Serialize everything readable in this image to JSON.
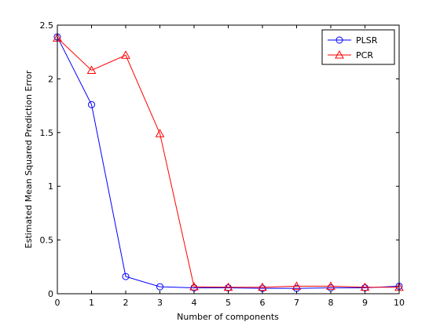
{
  "chart_data": {
    "type": "line",
    "title": "",
    "xlabel": "Number of components",
    "ylabel": "Estimated Mean Squared Prediction Error",
    "xlim": [
      0,
      10
    ],
    "ylim": [
      0,
      2.5
    ],
    "x": [
      0,
      1,
      2,
      3,
      4,
      5,
      6,
      7,
      8,
      9,
      10
    ],
    "x_ticks": [
      "0",
      "1",
      "2",
      "3",
      "4",
      "5",
      "6",
      "7",
      "8",
      "9",
      "10"
    ],
    "y_ticks": [
      {
        "value": 0,
        "label": "0"
      },
      {
        "value": 0.5,
        "label": "0.5"
      },
      {
        "value": 1,
        "label": "1"
      },
      {
        "value": 1.5,
        "label": "1.5"
      },
      {
        "value": 2,
        "label": "2"
      },
      {
        "value": 2.5,
        "label": "2.5"
      }
    ],
    "grid": false,
    "legend_position": "top-right",
    "series": [
      {
        "name": "PLSR",
        "color": "#0000ff",
        "marker": "circle",
        "values": [
          2.39,
          1.76,
          0.16,
          0.065,
          0.055,
          0.055,
          0.05,
          0.05,
          0.055,
          0.055,
          0.07
        ]
      },
      {
        "name": "PCR",
        "color": "#ff0000",
        "marker": "triangle",
        "values": [
          2.38,
          2.08,
          2.22,
          1.49,
          0.065,
          0.06,
          0.06,
          0.07,
          0.07,
          0.06,
          0.06
        ]
      }
    ]
  }
}
